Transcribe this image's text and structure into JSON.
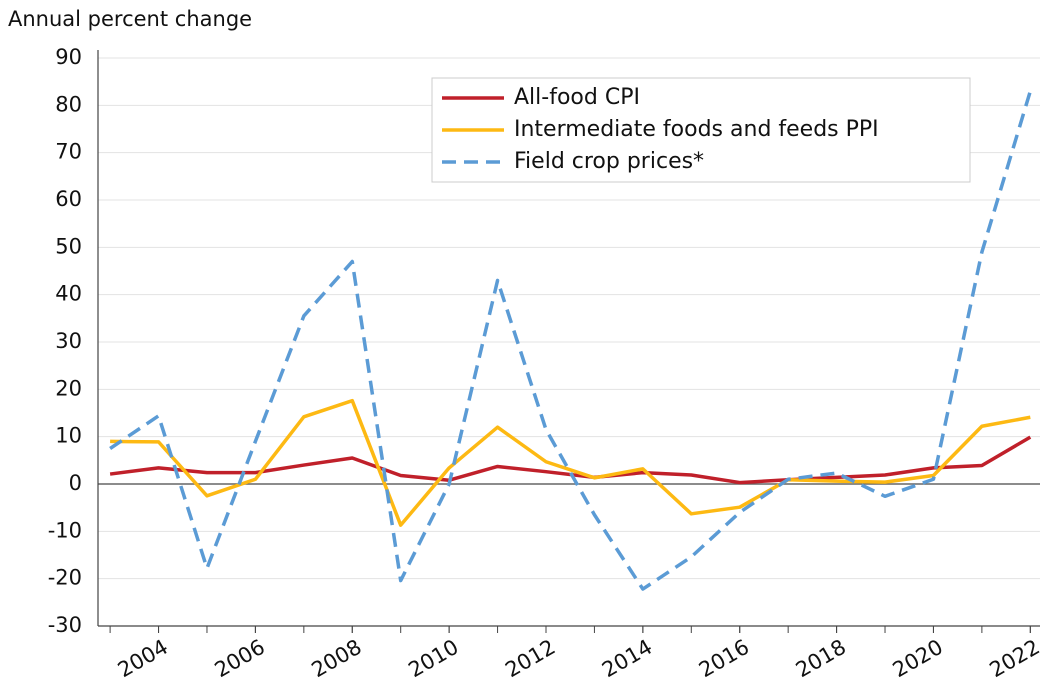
{
  "chart_data": {
    "type": "line",
    "y_label": "Annual percent change",
    "x": [
      2003,
      2004,
      2005,
      2006,
      2007,
      2008,
      2009,
      2010,
      2011,
      2012,
      2013,
      2014,
      2015,
      2016,
      2017,
      2018,
      2019,
      2020,
      2021,
      2022
    ],
    "series": [
      {
        "name": "All-food CPI",
        "color": "#c0202a",
        "dash": false,
        "values": [
          2.1,
          3.4,
          2.4,
          2.4,
          4.0,
          5.5,
          1.8,
          0.8,
          3.7,
          2.6,
          1.4,
          2.4,
          1.9,
          0.3,
          0.9,
          1.4,
          1.9,
          3.4,
          3.9,
          9.9
        ]
      },
      {
        "name": "Intermediate foods and feeds PPI",
        "color": "#fdb913",
        "dash": false,
        "values": [
          9.0,
          8.9,
          -2.5,
          1.0,
          14.2,
          17.6,
          -8.7,
          3.4,
          12.0,
          4.7,
          1.3,
          3.2,
          -6.3,
          -4.9,
          0.9,
          0.6,
          0.4,
          1.8,
          12.2,
          14.1
        ]
      },
      {
        "name": "Field crop prices*",
        "color": "#5b9bd5",
        "dash": true,
        "values": [
          7.5,
          14.4,
          -17.8,
          9.0,
          35.5,
          47.0,
          -20.4,
          0.0,
          43.0,
          11.5,
          -6.5,
          -22.2,
          -15.4,
          -6.0,
          1.0,
          2.3,
          -2.6,
          1.0,
          49.0,
          83.0
        ]
      }
    ],
    "xlim": [
      2002.75,
      2022.2
    ],
    "xticks": [
      2004,
      2006,
      2008,
      2010,
      2012,
      2014,
      2016,
      2018,
      2020,
      2022
    ],
    "ylim": [
      -30,
      90
    ],
    "yticks": [
      -30,
      -20,
      -10,
      0,
      10,
      20,
      30,
      40,
      50,
      60,
      70,
      80,
      90
    ],
    "grid": true,
    "legend": "upper right"
  }
}
